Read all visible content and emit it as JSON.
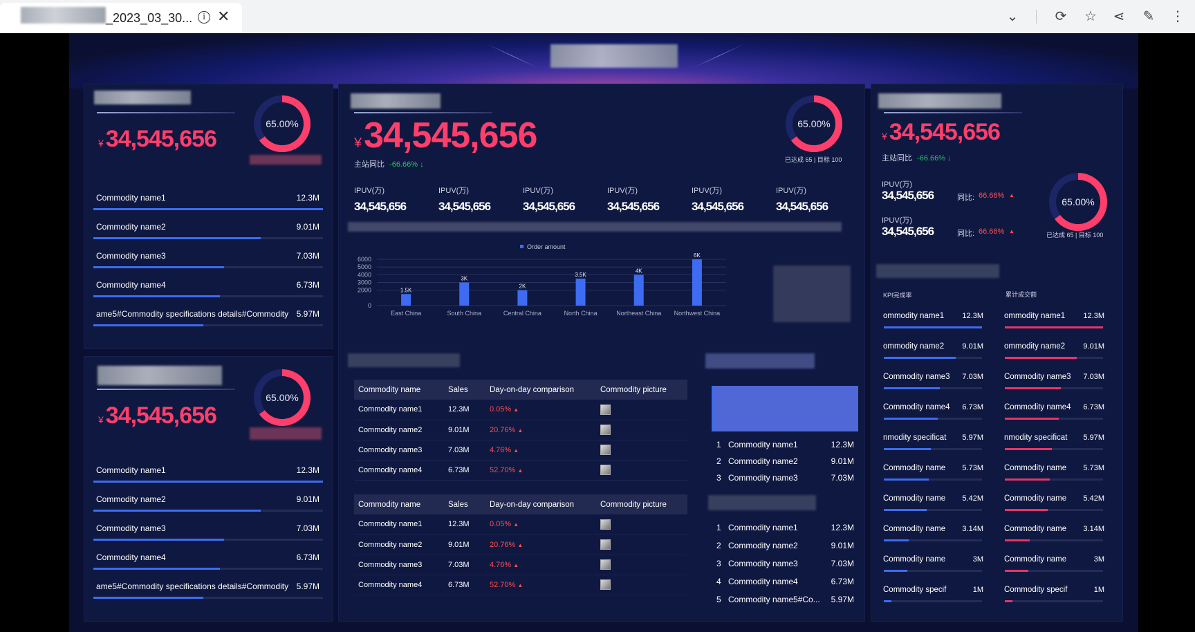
{
  "browser": {
    "tab_title": "_2023_03_30...",
    "info_icon": "info-icon",
    "close_icon": "close-icon",
    "toolbar_icons": [
      "chevron-down-icon",
      "refresh-icon",
      "star-icon",
      "share-icon",
      "edit-icon",
      "more-icon"
    ]
  },
  "ring_pct": "65.00%",
  "achieve_note": "已达成 65 | 目标 100",
  "colors": {
    "accent_blue": "#3d6cf2",
    "accent_pink": "#e83565",
    "ring_pink": "#ff3f6b",
    "background": "#0b1032"
  },
  "left_top": {
    "yen": "¥",
    "value": "34,545,656",
    "items": [
      {
        "name": "Commodity name1",
        "value": "12.3M",
        "pct": 1.0
      },
      {
        "name": "Commodity name2",
        "value": "9.01M",
        "pct": 0.73
      },
      {
        "name": "Commodity name3",
        "value": "7.03M",
        "pct": 0.57
      },
      {
        "name": "Commodity name4",
        "value": "6.73M",
        "pct": 0.55
      },
      {
        "name": "ame5#Commodity specifications details#Commodity",
        "value": "5.97M",
        "pct": 0.48
      }
    ]
  },
  "left_bottom": {
    "yen": "¥",
    "value": "34,545,656",
    "items": [
      {
        "name": "Commodity name1",
        "value": "12.3M",
        "pct": 1.0
      },
      {
        "name": "Commodity name2",
        "value": "9.01M",
        "pct": 0.73
      },
      {
        "name": "Commodity name3",
        "value": "7.03M",
        "pct": 0.57
      },
      {
        "name": "Commodity name4",
        "value": "6.73M",
        "pct": 0.55
      },
      {
        "name": "ame5#Commodity specifications details#Commodity",
        "value": "5.97M",
        "pct": 0.48
      }
    ]
  },
  "center": {
    "yen": "¥",
    "value": "34,545,656",
    "yoy_label": "主站同比",
    "yoy_value": "-66.66%",
    "down_arrow": "↓",
    "metrics": [
      {
        "label": "IPUV(万)",
        "value": "34,545,656"
      },
      {
        "label": "IPUV(万)",
        "value": "34,545,656"
      },
      {
        "label": "IPUV(万)",
        "value": "34,545,656"
      },
      {
        "label": "IPUV(万)",
        "value": "34,545,656"
      },
      {
        "label": "IPUV(万)",
        "value": "34,545,656"
      },
      {
        "label": "IPUV(万)",
        "value": "34,545,656"
      }
    ]
  },
  "chart_data": {
    "type": "bar",
    "legend": "Order amount",
    "categories": [
      "East China",
      "South China",
      "Central China",
      "North China",
      "Northeast China",
      "Northwest China"
    ],
    "values": [
      1500,
      3000,
      2000,
      3500,
      4000,
      6000
    ],
    "labels": [
      "1.5K",
      "3K",
      "2K",
      "3.5K",
      "4K",
      "6K"
    ],
    "yticks": [
      "6000",
      "5000",
      "4000",
      "3000",
      "2000",
      "0"
    ],
    "ylim": [
      0,
      6000
    ]
  },
  "table": {
    "headers": [
      "Commodity name",
      "Sales",
      "Day-on-day comparison",
      "Commodity picture"
    ],
    "rows": [
      {
        "name": "Commodity name1",
        "sales": "12.3M",
        "comp": "0.05%"
      },
      {
        "name": "Commodity name2",
        "sales": "9.01M",
        "comp": "20.76%"
      },
      {
        "name": "Commodity name3",
        "sales": "7.03M",
        "comp": "4.76%"
      },
      {
        "name": "Commodity name4",
        "sales": "6.73M",
        "comp": "52.70%"
      }
    ],
    "up_arrow": "▲"
  },
  "rank1": [
    {
      "rank": "1",
      "name": "Commodity name1",
      "value": "12.3M"
    },
    {
      "rank": "2",
      "name": "Commodity name2",
      "value": "9.01M"
    },
    {
      "rank": "3",
      "name": "Commodity name3",
      "value": "7.03M"
    }
  ],
  "rank2": [
    {
      "rank": "1",
      "name": "Commodity name1",
      "value": "12.3M"
    },
    {
      "rank": "2",
      "name": "Commodity name2",
      "value": "9.01M"
    },
    {
      "rank": "3",
      "name": "Commodity name3",
      "value": "7.03M"
    },
    {
      "rank": "4",
      "name": "Commodity name4",
      "value": "6.73M"
    },
    {
      "rank": "5",
      "name": "Commodity name5#Co...",
      "value": "5.97M"
    }
  ],
  "right": {
    "yen": "¥",
    "value": "34,545,656",
    "yoy_label": "主站同比",
    "yoy_value": "-66.66%",
    "down_arrow": "↓",
    "ipuv": [
      {
        "label": "IPUV(万)",
        "value": "34,545,656",
        "tb_label": "同比:",
        "tb_value": "66.66%"
      },
      {
        "label": "IPUV(万)",
        "value": "34,545,656",
        "tb_label": "同比:",
        "tb_value": "66.66%"
      }
    ],
    "kpi_title": "KPI完成率",
    "cum_title": "累计成交额",
    "kpi_items": [
      {
        "name": "ommodity name1",
        "value": "12.3M",
        "pct": 1.0
      },
      {
        "name": "ommodity name2",
        "value": "9.01M",
        "pct": 0.73
      },
      {
        "name": "Commodity name3",
        "value": "7.03M",
        "pct": 0.57
      },
      {
        "name": "Commodity name4",
        "value": "6.73M",
        "pct": 0.55
      },
      {
        "name": "nmodity specificat",
        "value": "5.97M",
        "pct": 0.48
      },
      {
        "name": "Commodity name",
        "value": "5.73M",
        "pct": 0.46
      },
      {
        "name": "Commodity name",
        "value": "5.42M",
        "pct": 0.44
      },
      {
        "name": "Commodity name",
        "value": "3.14M",
        "pct": 0.25
      },
      {
        "name": "Commodity name",
        "value": "3M",
        "pct": 0.24
      },
      {
        "name": "Commodity specif",
        "value": "1M",
        "pct": 0.08
      }
    ],
    "cum_items": [
      {
        "name": "ommodity name1",
        "value": "12.3M",
        "pct": 1.0
      },
      {
        "name": "ommodity name2",
        "value": "9.01M",
        "pct": 0.73
      },
      {
        "name": "Commodity name3",
        "value": "7.03M",
        "pct": 0.57
      },
      {
        "name": "Commodity name4",
        "value": "6.73M",
        "pct": 0.55
      },
      {
        "name": "nmodity specificat",
        "value": "5.97M",
        "pct": 0.48
      },
      {
        "name": "Commodity name",
        "value": "5.73M",
        "pct": 0.46
      },
      {
        "name": "Commodity name",
        "value": "5.42M",
        "pct": 0.44
      },
      {
        "name": "Commodity name",
        "value": "3.14M",
        "pct": 0.25
      },
      {
        "name": "Commodity name",
        "value": "3M",
        "pct": 0.24
      },
      {
        "name": "Commodity specif",
        "value": "1M",
        "pct": 0.08
      }
    ]
  }
}
